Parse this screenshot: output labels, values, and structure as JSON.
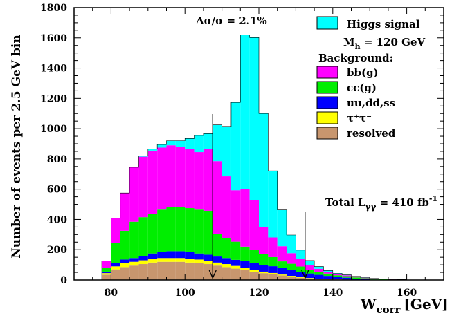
{
  "chart_data": {
    "type": "area",
    "subtype": "stacked-histogram",
    "xlabel": "W",
    "xlabel_sub": "corr",
    "xlabel_unit": "[GeV]",
    "ylabel": "Number of events per 2.5 GeV bin",
    "xlim": [
      70,
      170
    ],
    "ylim": [
      0,
      1800
    ],
    "x_ticks": [
      80,
      100,
      120,
      140,
      160
    ],
    "y_ticks": [
      0,
      200,
      400,
      600,
      800,
      1000,
      1200,
      1400,
      1600,
      1800
    ],
    "bin_width": 2.5,
    "bins_start": [
      77.5,
      80,
      82.5,
      85,
      87.5,
      90,
      92.5,
      95,
      97.5,
      100,
      102.5,
      105,
      107.5,
      110,
      112.5,
      115,
      117.5,
      120,
      122.5,
      125,
      127.5,
      130,
      132.5,
      135,
      137.5,
      140,
      142.5,
      145,
      147.5,
      150,
      152.5,
      155,
      157.5,
      160,
      162.5,
      165,
      167.5
    ],
    "series": [
      {
        "name": "resolved",
        "color": "#c8966e",
        "values": [
          35,
          70,
          85,
          95,
          105,
          115,
          120,
          120,
          120,
          115,
          110,
          105,
          95,
          85,
          75,
          65,
          55,
          45,
          38,
          30,
          22,
          15,
          10,
          7,
          5,
          3,
          2,
          1,
          1,
          0,
          0,
          0,
          0,
          0,
          0,
          0,
          0
        ]
      },
      {
        "name": "τ⁺τ⁻",
        "color": "#ffff00",
        "values": [
          10,
          20,
          25,
          25,
          25,
          25,
          25,
          25,
          25,
          25,
          25,
          22,
          20,
          20,
          18,
          15,
          12,
          10,
          8,
          6,
          5,
          4,
          3,
          2,
          2,
          1,
          1,
          0,
          0,
          0,
          0,
          0,
          0,
          0,
          0,
          0,
          0
        ]
      },
      {
        "name": "uu,dd,ss",
        "color": "#0000ff",
        "values": [
          10,
          20,
          25,
          25,
          30,
          35,
          40,
          45,
          45,
          45,
          40,
          40,
          40,
          40,
          40,
          45,
          45,
          45,
          45,
          42,
          40,
          35,
          30,
          25,
          20,
          15,
          12,
          8,
          5,
          3,
          2,
          1,
          1,
          0,
          0,
          0,
          0
        ]
      },
      {
        "name": "cc(g)",
        "color": "#00ee00",
        "values": [
          25,
          135,
          190,
          240,
          255,
          260,
          280,
          290,
          290,
          290,
          290,
          290,
          150,
          130,
          120,
          95,
          85,
          70,
          60,
          45,
          40,
          35,
          25,
          20,
          15,
          12,
          10,
          8,
          6,
          4,
          3,
          2,
          1,
          1,
          0,
          0,
          0
        ]
      },
      {
        "name": "bb(g)",
        "color": "#ff00ff",
        "values": [
          45,
          165,
          250,
          360,
          400,
          420,
          410,
          410,
          400,
          390,
          380,
          410,
          480,
          410,
          340,
          380,
          330,
          180,
          130,
          100,
          70,
          48,
          30,
          20,
          12,
          8,
          6,
          5,
          3,
          2,
          1,
          1,
          1,
          0,
          0,
          0,
          0
        ]
      },
      {
        "name": "Higgs signal",
        "color": "#00ffff",
        "values": [
          0,
          0,
          0,
          0,
          5,
          10,
          20,
          30,
          40,
          70,
          110,
          100,
          240,
          330,
          580,
          1020,
          1075,
          750,
          440,
          240,
          120,
          60,
          30,
          15,
          8,
          5,
          3,
          2,
          1,
          1,
          0,
          0,
          0,
          0,
          0,
          0,
          0
        ]
      }
    ],
    "legend": {
      "position": "top-right",
      "signal_title": "Higgs signal",
      "mass_label": "M",
      "mass_sub": "h",
      "mass_value": " = 120 GeV",
      "background_title": "Background:"
    },
    "annotations": {
      "resolution_text": "Δσ/σ = 2.1%",
      "lumi_prefix": "Total L",
      "lumi_sub": "γγ",
      "lumi_value": " = 410 fb",
      "lumi_sup": "-1",
      "window_low_gev": 107.5,
      "window_high_gev": 132.5
    },
    "grid": false
  }
}
